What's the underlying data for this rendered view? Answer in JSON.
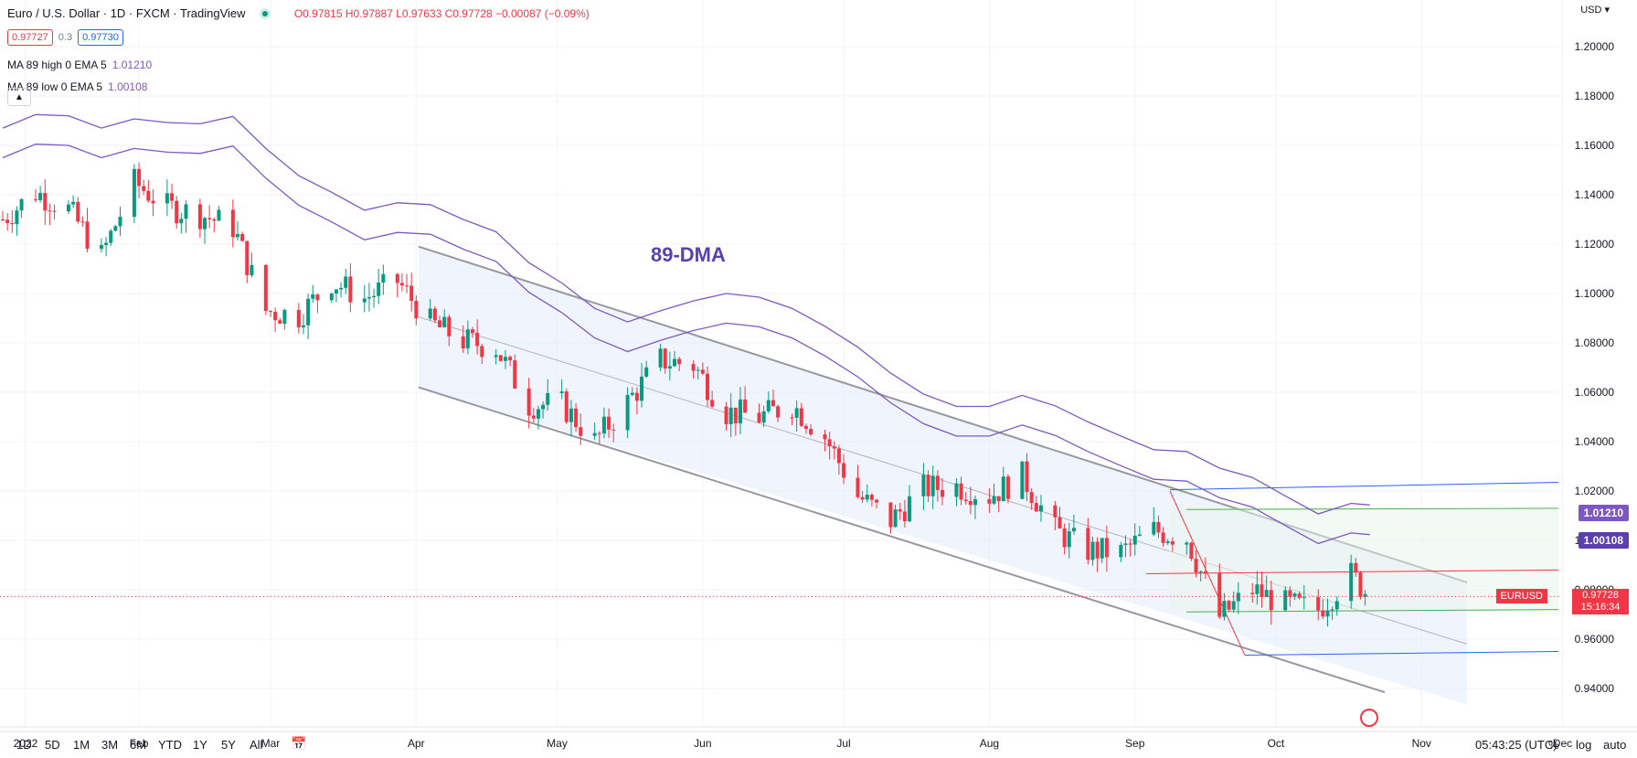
{
  "header": {
    "title": "Euro / U.S. Dollar · 1D · FXCM · TradingView",
    "ohlc": "O0.97815 H0.97887 L0.97633 C0.97728 −0.00087 (−0.09%)",
    "bid": "0.97727",
    "spread": "0.3",
    "ask": "0.97730",
    "collapse_icon": "chevron-up-icon"
  },
  "indicators": [
    {
      "label": "MA 89 high 0 EMA 5",
      "value": "1.01210"
    },
    {
      "label": "MA 89 low 0 EMA 5",
      "value": "1.00108"
    }
  ],
  "colors": {
    "up": "#089981",
    "down": "#f23645",
    "ma": "#7e57c2",
    "channel": "#9598a1",
    "fib_top": "#2962ff",
    "fib_mid": "#f23645",
    "fib_green": "#4caf50"
  },
  "chart_data": {
    "type": "candlestick",
    "annotation": "89-DMA",
    "currency": "USD",
    "symbol": "EURUSD",
    "last_price": "0.97728",
    "countdown": "15:16:34",
    "ylim": [
      0.932,
      1.2
    ],
    "y_ticks": [
      "1.20000",
      "1.18000",
      "1.16000",
      "1.14000",
      "1.12000",
      "1.10000",
      "1.08000",
      "1.06000",
      "1.04000",
      "1.02000",
      "1.00000",
      "0.98000",
      "0.96000",
      "0.94000"
    ],
    "x_ticks": [
      "2022",
      "Feb",
      "Mar",
      "Apr",
      "May",
      "Jun",
      "Jul",
      "Aug",
      "Sep",
      "Oct",
      "Nov",
      "Dec"
    ],
    "ma_tags": [
      "1.01210",
      "1.00108"
    ],
    "series_close": [
      [
        "2022-01-03",
        1.13
      ],
      [
        "2022-01-10",
        1.141
      ],
      [
        "2022-01-17",
        1.134
      ],
      [
        "2022-01-24",
        1.115
      ],
      [
        "2022-01-31",
        1.145
      ],
      [
        "2022-02-07",
        1.135
      ],
      [
        "2022-02-14",
        1.132
      ],
      [
        "2022-02-21",
        1.127
      ],
      [
        "2022-02-28",
        1.093
      ],
      [
        "2022-03-07",
        1.091
      ],
      [
        "2022-03-14",
        1.105
      ],
      [
        "2022-03-21",
        1.098
      ],
      [
        "2022-03-28",
        1.105
      ],
      [
        "2022-04-04",
        1.088
      ],
      [
        "2022-04-11",
        1.081
      ],
      [
        "2022-04-18",
        1.078
      ],
      [
        "2022-04-25",
        1.055
      ],
      [
        "2022-05-02",
        1.055
      ],
      [
        "2022-05-09",
        1.04
      ],
      [
        "2022-05-16",
        1.056
      ],
      [
        "2022-05-23",
        1.073
      ],
      [
        "2022-05-30",
        1.071
      ],
      [
        "2022-06-06",
        1.052
      ],
      [
        "2022-06-13",
        1.05
      ],
      [
        "2022-06-20",
        1.055
      ],
      [
        "2022-06-27",
        1.042
      ],
      [
        "2022-07-04",
        1.018
      ],
      [
        "2022-07-11",
        1.008
      ],
      [
        "2022-07-18",
        1.021
      ],
      [
        "2022-07-25",
        1.022
      ],
      [
        "2022-08-01",
        1.018
      ],
      [
        "2022-08-08",
        1.026
      ],
      [
        "2022-08-15",
        1.004
      ],
      [
        "2022-08-22",
        0.996
      ],
      [
        "2022-08-29",
        0.995
      ],
      [
        "2022-09-05",
        1.004
      ],
      [
        "2022-09-12",
        1.001
      ],
      [
        "2022-09-19",
        0.969
      ],
      [
        "2022-09-26",
        0.98
      ],
      [
        "2022-10-03",
        0.974
      ],
      [
        "2022-10-10",
        0.972
      ],
      [
        "2022-10-17",
        0.986
      ],
      [
        "2022-10-21",
        0.97728
      ]
    ]
  },
  "toolbar": {
    "timeframes": [
      "1D",
      "5D",
      "1M",
      "3M",
      "6M",
      "YTD",
      "1Y",
      "5Y",
      "All"
    ],
    "clock": "05:43:25 (UTC)",
    "percent": "%",
    "log": "log",
    "auto": "auto"
  }
}
